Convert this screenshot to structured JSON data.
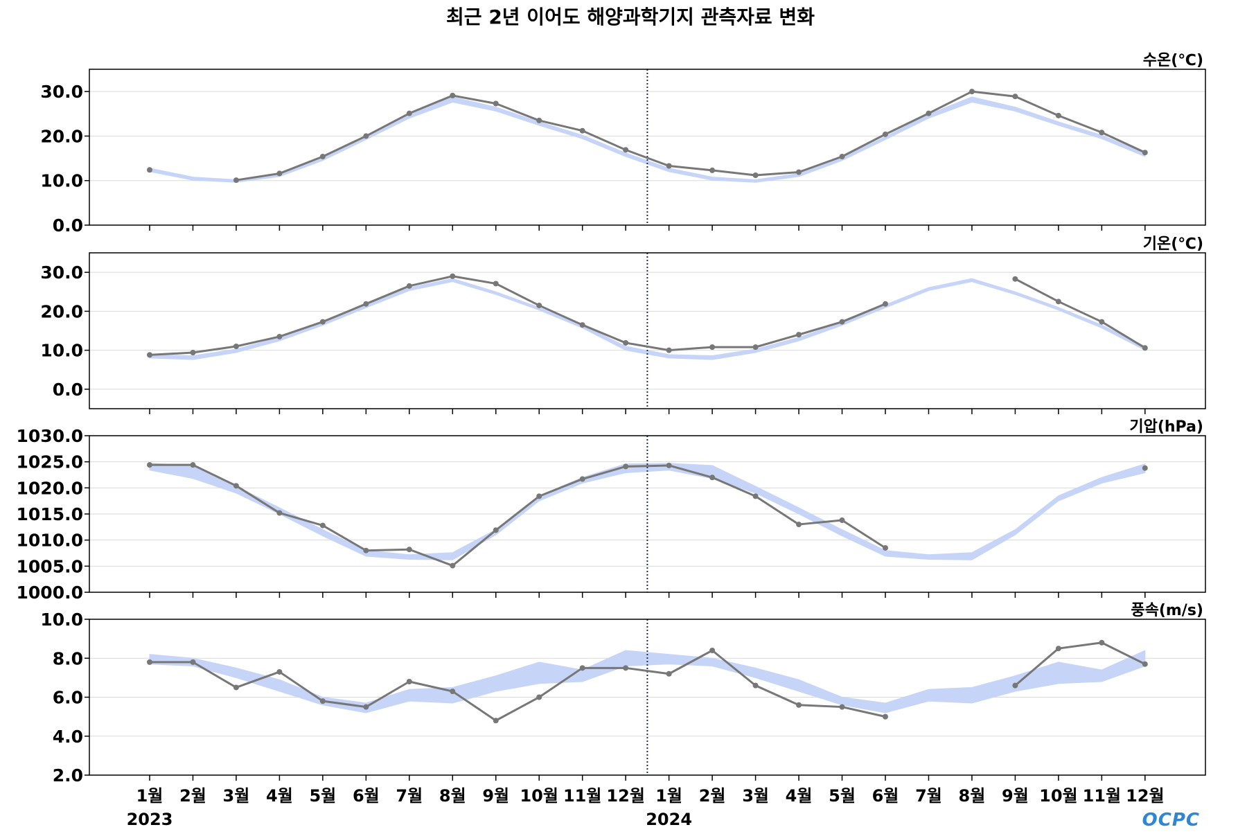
{
  "title": "최근 2년 이어도 해양과학기지 관측자료 변화",
  "x_axis": {
    "categories": [
      "1월",
      "2월",
      "3월",
      "4월",
      "5월",
      "6월",
      "7월",
      "8월",
      "9월",
      "10월",
      "11월",
      "12월",
      "1월",
      "2월",
      "3월",
      "4월",
      "5월",
      "6월",
      "7월",
      "8월",
      "9월",
      "10월",
      "11월",
      "12월"
    ],
    "years": [
      {
        "label": "2023",
        "category_index": 0
      },
      {
        "label": "2024",
        "category_index": 12
      }
    ]
  },
  "logo": "OCPC",
  "colors": {
    "observed_line": "#777777",
    "band": "#c6d4f8",
    "year_divider": "#1c2b55",
    "grid": "#d9d9d9",
    "logo": "#2e86d4"
  },
  "chart_data": [
    {
      "type": "line",
      "title": "수온(℃)",
      "ylim": [
        0,
        35
      ],
      "yticks": [
        0,
        10,
        20,
        30
      ],
      "ytick_labels": [
        "0.0",
        "10.0",
        "20.0",
        "30.0"
      ],
      "grid": true,
      "series": [
        {
          "values": [
            12.4,
            null,
            10.1,
            11.6,
            15.4,
            20.0,
            25.1,
            29.1,
            27.3,
            23.5,
            21.2,
            16.9,
            13.3,
            12.3,
            11.2,
            11.9,
            15.4,
            20.4,
            25.1,
            30.0,
            28.9,
            24.6,
            20.8,
            16.3
          ]
        }
      ],
      "band": {
        "lower": [
          12.0,
          10.1,
          9.6,
          10.9,
          14.5,
          19.2,
          24.0,
          27.6,
          25.6,
          22.4,
          19.4,
          15.4,
          12.0,
          10.1,
          9.6,
          10.9,
          14.5,
          19.2,
          24.0,
          27.6,
          25.6,
          22.4,
          19.4,
          15.4
        ],
        "upper": [
          12.8,
          10.8,
          10.2,
          11.6,
          15.2,
          19.9,
          24.9,
          28.8,
          26.5,
          23.2,
          20.2,
          16.2,
          12.8,
          10.8,
          10.2,
          11.6,
          15.2,
          19.9,
          24.9,
          28.8,
          26.5,
          23.2,
          20.2,
          16.2
        ]
      }
    },
    {
      "type": "line",
      "title": "기온(℃)",
      "ylim": [
        -5,
        35
      ],
      "yticks": [
        0,
        10,
        20,
        30
      ],
      "ytick_labels": [
        "0.0",
        "10.0",
        "20.0",
        "30.0"
      ],
      "grid": true,
      "series": [
        {
          "values": [
            8.8,
            9.4,
            11.0,
            13.5,
            17.3,
            21.9,
            26.5,
            29.0,
            27.1,
            21.5,
            16.5,
            11.9,
            10.0,
            10.8,
            10.8,
            14.0,
            17.3,
            21.9,
            null,
            null,
            28.3,
            22.5,
            17.3,
            10.6
          ]
        }
      ],
      "band": {
        "lower": [
          8.0,
          7.6,
          9.4,
          12.4,
          16.4,
          20.9,
          25.3,
          27.6,
          24.3,
          20.3,
          15.7,
          10.0,
          8.0,
          7.6,
          9.4,
          12.4,
          16.4,
          20.9,
          25.3,
          27.6,
          24.3,
          20.3,
          15.7,
          10.0
        ],
        "upper": [
          8.9,
          8.6,
          10.3,
          13.3,
          17.2,
          21.7,
          26.1,
          28.4,
          25.0,
          21.0,
          16.5,
          11.0,
          8.9,
          8.6,
          10.3,
          13.3,
          17.2,
          21.7,
          26.1,
          28.4,
          25.0,
          21.0,
          16.5,
          11.0
        ]
      }
    },
    {
      "type": "line",
      "title": "기압(hPa)",
      "ylim": [
        1000,
        1030
      ],
      "yticks": [
        1000,
        1005,
        1010,
        1015,
        1020,
        1025,
        1030
      ],
      "ytick_labels": [
        "1000.0",
        "1005.0",
        "1010.0",
        "1015.0",
        "1020.0",
        "1025.0",
        "1030.0"
      ],
      "grid": true,
      "series": [
        {
          "values": [
            1024.4,
            1024.4,
            1020.4,
            1015.2,
            1012.8,
            1008.0,
            1008.2,
            1005.1,
            1011.9,
            1018.4,
            1021.7,
            1024.1,
            1024.3,
            1022.0,
            1018.4,
            1013.0,
            1013.8,
            1008.5,
            null,
            null,
            null,
            null,
            null,
            1023.8
          ]
        }
      ],
      "band": {
        "lower": [
          1023.4,
          1021.8,
          1019.0,
          1015.0,
          1010.8,
          1006.9,
          1006.3,
          1006.2,
          1011.0,
          1017.5,
          1020.9,
          1022.9,
          1023.4,
          1021.8,
          1019.0,
          1015.0,
          1010.8,
          1006.9,
          1006.3,
          1006.2,
          1011.0,
          1017.5,
          1020.9,
          1022.9
        ],
        "upper": [
          1024.7,
          1024.3,
          1020.3,
          1016.2,
          1012.0,
          1008.0,
          1007.2,
          1007.6,
          1012.0,
          1018.5,
          1022.0,
          1024.6,
          1024.7,
          1024.3,
          1020.3,
          1016.2,
          1012.0,
          1008.0,
          1007.2,
          1007.6,
          1012.0,
          1018.5,
          1022.0,
          1024.6
        ]
      }
    },
    {
      "type": "line",
      "title": "풍속(m/s)",
      "ylim": [
        2,
        10
      ],
      "yticks": [
        2,
        4,
        6,
        8,
        10
      ],
      "ytick_labels": [
        "2.0",
        "4.0",
        "6.0",
        "8.0",
        "10.0"
      ],
      "grid": true,
      "series": [
        {
          "values": [
            7.8,
            7.8,
            6.5,
            7.3,
            5.8,
            5.5,
            6.8,
            6.3,
            4.8,
            6.0,
            7.5,
            7.5,
            7.2,
            8.4,
            6.6,
            5.6,
            5.5,
            5.0,
            null,
            null,
            6.6,
            8.5,
            8.8,
            7.7
          ]
        }
      ],
      "band": {
        "lower": [
          7.7,
          7.6,
          7.0,
          6.3,
          5.6,
          5.2,
          5.8,
          5.7,
          6.3,
          6.7,
          6.8,
          7.6,
          7.7,
          7.6,
          7.0,
          6.3,
          5.6,
          5.2,
          5.8,
          5.7,
          6.3,
          6.7,
          6.8,
          7.6
        ],
        "upper": [
          8.2,
          8.0,
          7.5,
          6.9,
          6.0,
          5.7,
          6.4,
          6.5,
          7.1,
          7.8,
          7.4,
          8.4,
          8.2,
          8.0,
          7.5,
          6.9,
          6.0,
          5.7,
          6.4,
          6.5,
          7.1,
          7.8,
          7.4,
          8.4
        ]
      }
    }
  ]
}
